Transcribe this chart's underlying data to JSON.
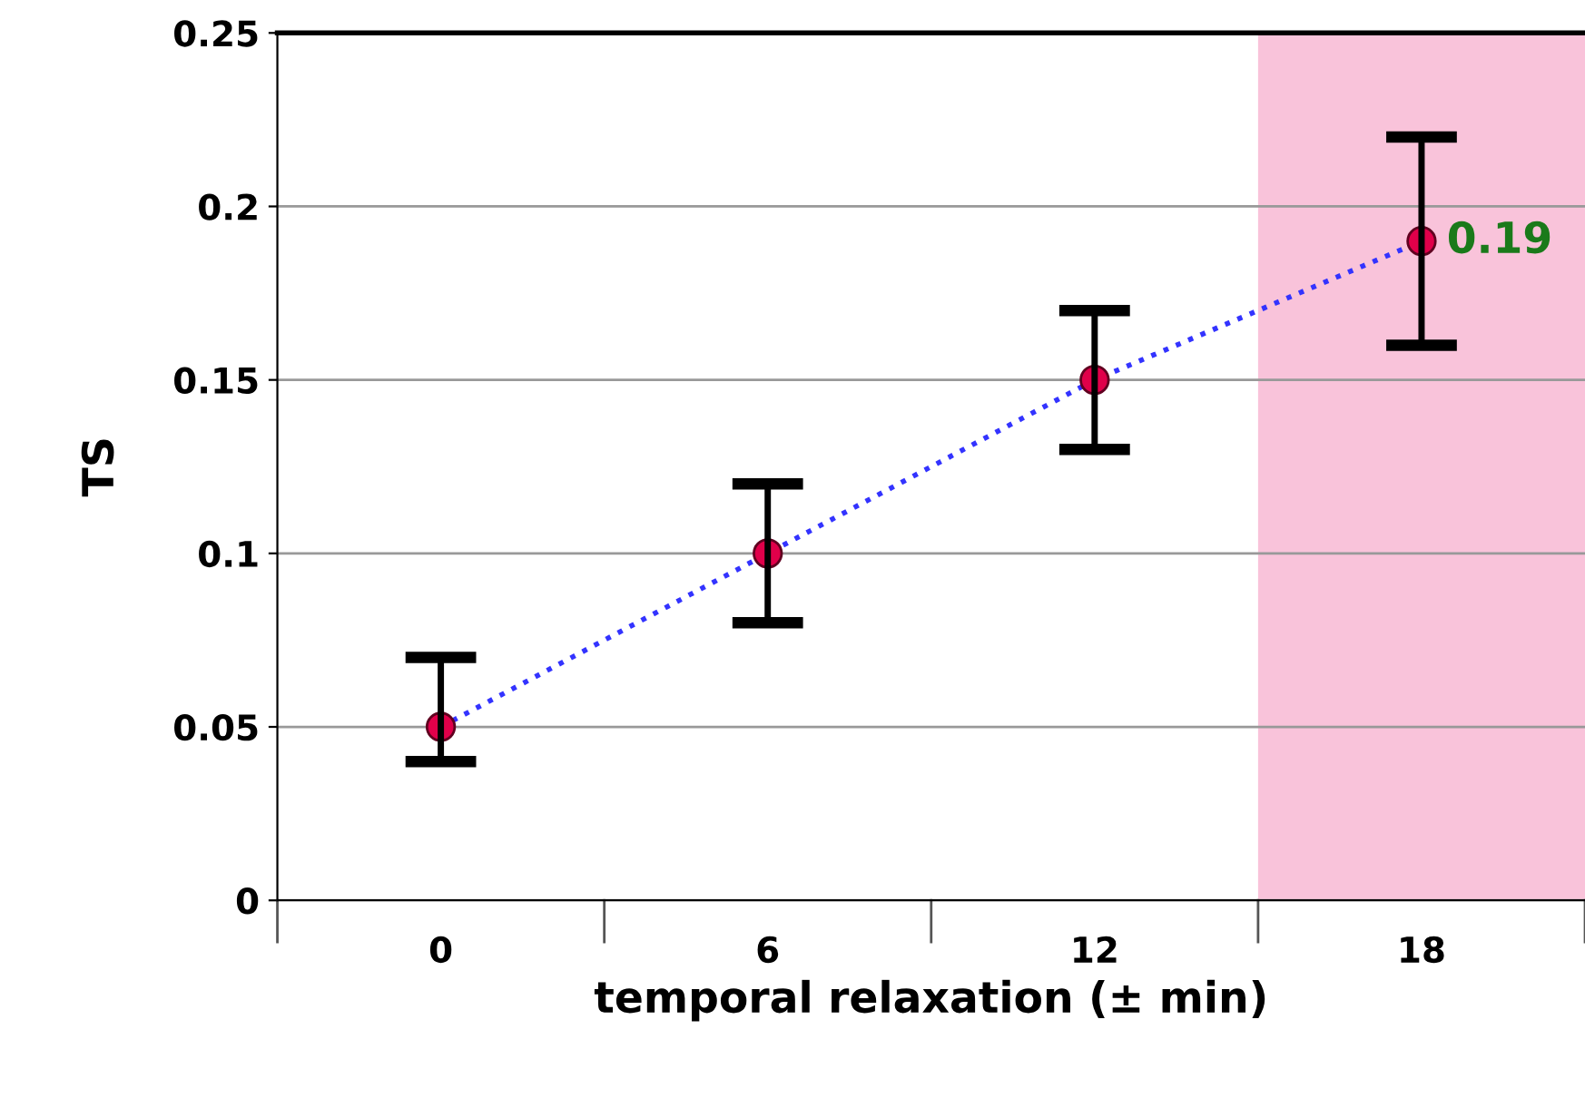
{
  "chart_data": {
    "type": "line",
    "xlabel": "temporal relaxation (± min)",
    "ylabel": "TS",
    "categories": [
      "0",
      "6",
      "12",
      "18"
    ],
    "series": [
      {
        "color": "#e0004a",
        "values": [
          0.05,
          0.1,
          0.15,
          0.19
        ],
        "errors": [
          [
            0.04,
            0.07
          ],
          [
            0.08,
            0.12
          ],
          [
            0.13,
            0.17
          ],
          [
            0.16,
            0.22
          ]
        ],
        "value_labels": [
          null,
          null,
          null,
          "0.19"
        ]
      }
    ],
    "ylim": [
      0,
      0.25
    ],
    "yticks": [
      0,
      0.05,
      {
        "value": 0.1,
        "label": "0.1"
      },
      0.15,
      {
        "value": 0.2,
        "label": "0.2"
      },
      0.25
    ],
    "grid": "y",
    "marker": "circle",
    "line_style": "dotted",
    "bands": [
      {
        "axis": "x",
        "from": "18",
        "to": "18",
        "color": "#f9c3da"
      }
    ]
  }
}
